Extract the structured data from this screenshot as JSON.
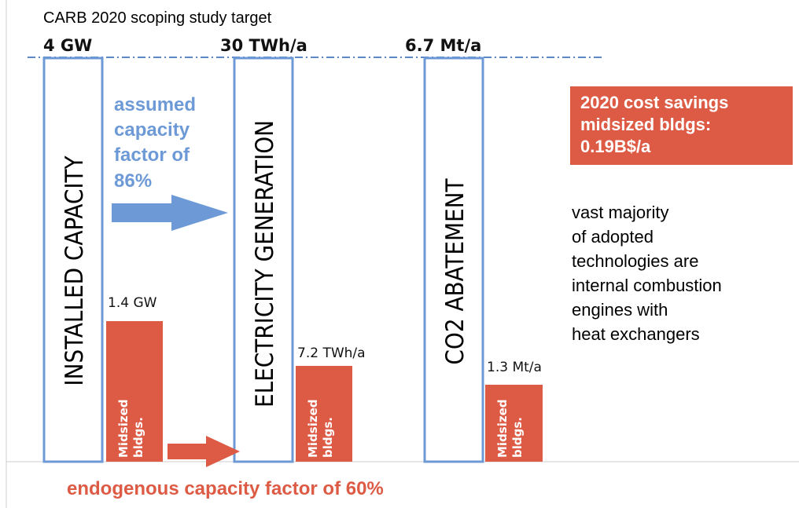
{
  "header": {
    "title": "CARB 2020 scoping study target"
  },
  "columns": [
    {
      "target": "4 GW",
      "label": "INSTALLED CAPACITY",
      "bar_value": "1.4 GW",
      "bar_label": [
        "Midsized",
        "bldgs."
      ]
    },
    {
      "target": "30 TWh/a",
      "label": "ELECTRICITY GENERATION",
      "bar_value": "7.2 TWh/a",
      "bar_label": [
        "Midsized",
        "bldgs."
      ]
    },
    {
      "target": "6.7 Mt/a",
      "label": "CO2 ABATEMENT",
      "bar_value": "1.3 Mt/a",
      "bar_label": [
        "Midsized",
        "bldgs."
      ]
    }
  ],
  "assumed_note": [
    "assumed",
    "capacity",
    "factor of",
    "86%"
  ],
  "endogenous_note": "endogenous capacity factor of 60%",
  "callout": [
    "2020 cost savings",
    "midsized bldgs:",
    "0.19B$/a"
  ],
  "remark": [
    "vast majority",
    "of adopted",
    "technologies are",
    "internal combustion",
    "engines with",
    "heat exchangers"
  ]
}
